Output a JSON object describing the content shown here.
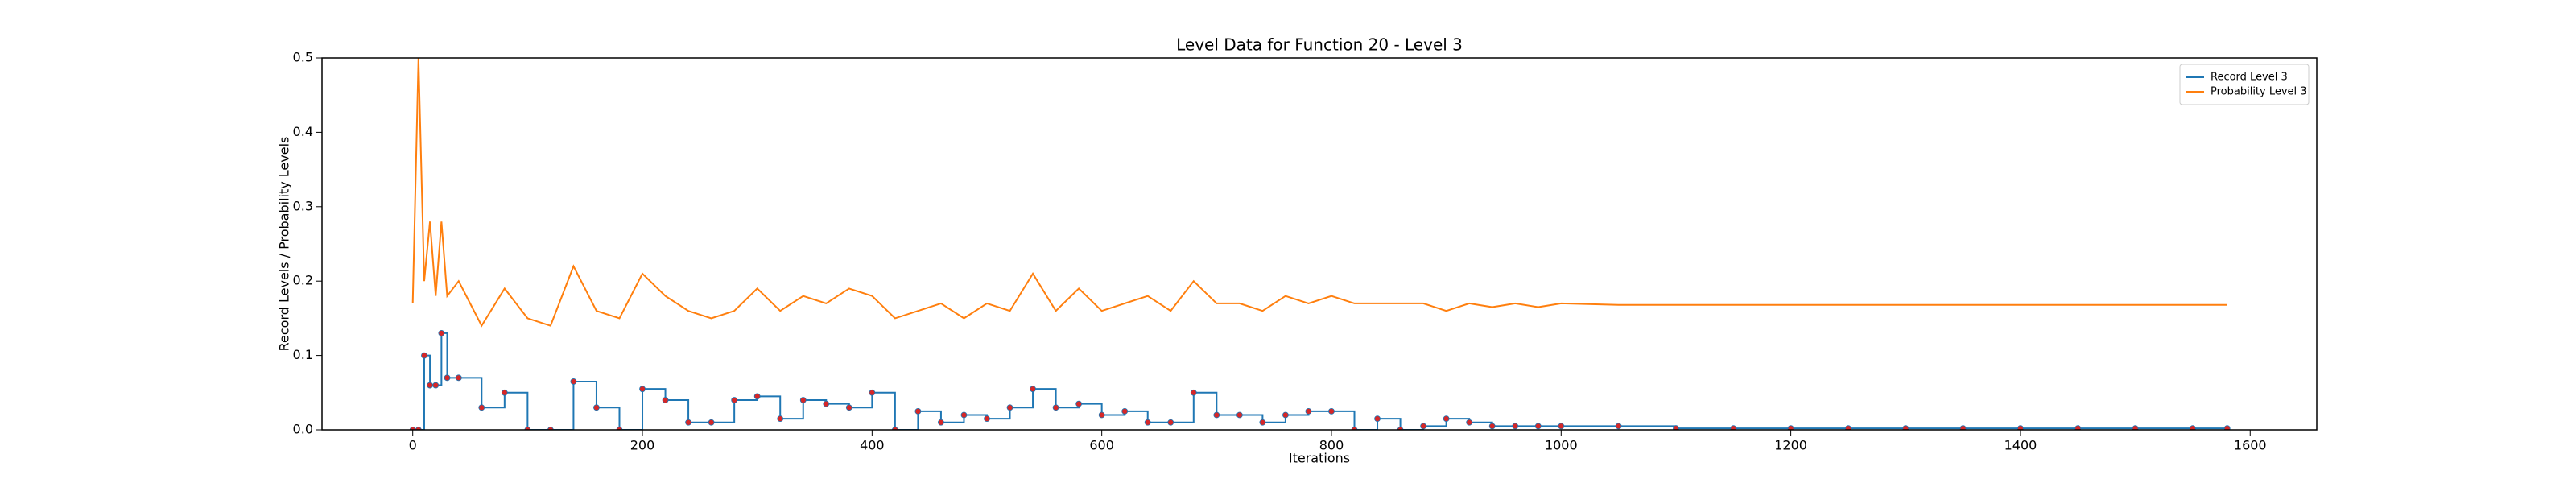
{
  "chart_data": {
    "type": "line",
    "title": "Level Data for Function 20 - Level 3",
    "xlabel": "Iterations",
    "ylabel": "Record Levels / Probability Levels",
    "x": [
      0,
      5,
      10,
      15,
      20,
      25,
      30,
      40,
      60,
      80,
      100,
      120,
      140,
      160,
      180,
      200,
      220,
      240,
      260,
      280,
      300,
      320,
      340,
      360,
      380,
      400,
      420,
      440,
      460,
      480,
      500,
      520,
      540,
      560,
      580,
      600,
      620,
      640,
      660,
      680,
      700,
      720,
      740,
      760,
      780,
      800,
      820,
      840,
      860,
      880,
      900,
      920,
      940,
      960,
      980,
      1000,
      1050,
      1100,
      1150,
      1200,
      1250,
      1300,
      1350,
      1400,
      1450,
      1500,
      1550,
      1580
    ],
    "series": [
      {
        "name": "Record Level 3",
        "color": "#1f77b4",
        "step": true,
        "marker_color": "#d62728",
        "values": [
          0,
          0,
          0.1,
          0.06,
          0.06,
          0.13,
          0.07,
          0.07,
          0.03,
          0.05,
          0,
          0,
          0.065,
          0.03,
          0,
          0.055,
          0.04,
          0.01,
          0.01,
          0.04,
          0.045,
          0.015,
          0.04,
          0.035,
          0.03,
          0.05,
          0,
          0.025,
          0.01,
          0.02,
          0.015,
          0.03,
          0.055,
          0.03,
          0.035,
          0.02,
          0.025,
          0.01,
          0.01,
          0.05,
          0.02,
          0.02,
          0.01,
          0.02,
          0.025,
          0.025,
          0,
          0.015,
          0,
          0.005,
          0.015,
          0.01,
          0.005,
          0.005,
          0.005,
          0.005,
          0.005,
          0.002,
          0.002,
          0.002,
          0.002,
          0.002,
          0.002,
          0.002,
          0.002,
          0.002,
          0.002,
          0.002
        ]
      },
      {
        "name": "Probability Level 3",
        "color": "#ff7f0e",
        "values": [
          0.17,
          0.5,
          0.2,
          0.28,
          0.18,
          0.28,
          0.18,
          0.2,
          0.14,
          0.19,
          0.15,
          0.14,
          0.22,
          0.16,
          0.15,
          0.21,
          0.18,
          0.16,
          0.15,
          0.16,
          0.19,
          0.16,
          0.18,
          0.17,
          0.19,
          0.18,
          0.15,
          0.16,
          0.17,
          0.15,
          0.17,
          0.16,
          0.21,
          0.16,
          0.19,
          0.16,
          0.17,
          0.18,
          0.16,
          0.2,
          0.17,
          0.17,
          0.16,
          0.18,
          0.17,
          0.18,
          0.17,
          0.17,
          0.17,
          0.17,
          0.16,
          0.17,
          0.165,
          0.17,
          0.165,
          0.17,
          0.168,
          0.168,
          0.168,
          0.168,
          0.168,
          0.168,
          0.168,
          0.168,
          0.168,
          0.168,
          0.168,
          0.168
        ]
      }
    ],
    "xlim": [
      -79,
      1658
    ],
    "xticks": [
      0,
      200,
      400,
      600,
      800,
      1000,
      1200,
      1400,
      1600
    ],
    "ylim": [
      0,
      0.5
    ],
    "yticks": [
      {
        "value": 0,
        "label": "0.0"
      },
      0.1,
      0.2,
      0.3,
      0.4,
      0.5
    ],
    "legend": "upper right"
  }
}
